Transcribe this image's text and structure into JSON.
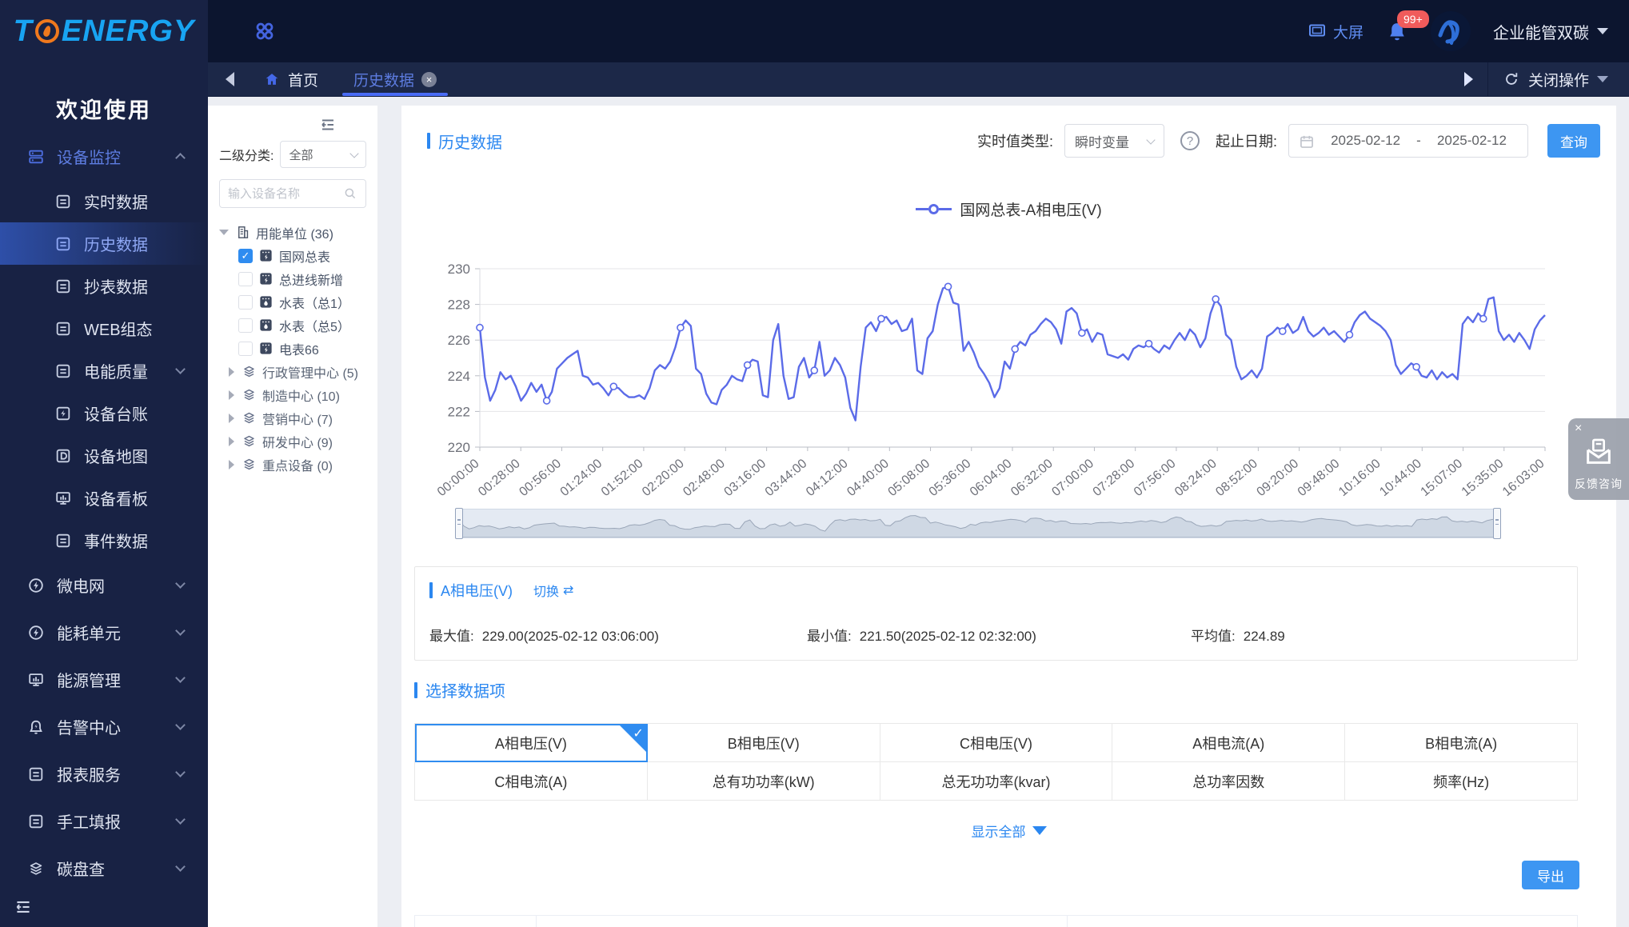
{
  "sidebar": {
    "logo": {
      "prefix": "T",
      "suffix": "ENERGY"
    },
    "welcome": "欢迎使用",
    "menu": [
      {
        "label": "设备监控",
        "icon": "devices-icon",
        "kind": "group",
        "chevron": "up",
        "active": true
      },
      {
        "label": "实时数据",
        "icon": "doc-icon",
        "kind": "item"
      },
      {
        "label": "历史数据",
        "icon": "doc-icon",
        "kind": "item",
        "selected": true
      },
      {
        "label": "抄表数据",
        "icon": "doc-icon",
        "kind": "item"
      },
      {
        "label": "WEB组态",
        "icon": "doc-icon",
        "kind": "item"
      },
      {
        "label": "电能质量",
        "icon": "doc-icon",
        "kind": "item",
        "chevron": "down"
      },
      {
        "label": "设备台账",
        "icon": "ledger-icon",
        "kind": "item"
      },
      {
        "label": "设备地图",
        "icon": "map-icon",
        "kind": "item"
      },
      {
        "label": "设备看板",
        "icon": "board-icon",
        "kind": "item"
      },
      {
        "label": "事件数据",
        "icon": "doc-icon",
        "kind": "item"
      },
      {
        "label": "微电网",
        "icon": "bolt-icon",
        "kind": "top",
        "chevron": "down"
      },
      {
        "label": "能耗单元",
        "icon": "bolt-icon",
        "kind": "top",
        "chevron": "down"
      },
      {
        "label": "能源管理",
        "icon": "board-icon",
        "kind": "top",
        "chevron": "down"
      },
      {
        "label": "告警中心",
        "icon": "alarm-icon",
        "kind": "top",
        "chevron": "down"
      },
      {
        "label": "报表服务",
        "icon": "doc-icon",
        "kind": "top",
        "chevron": "down"
      },
      {
        "label": "手工填报",
        "icon": "doc-icon",
        "kind": "top",
        "chevron": "down"
      },
      {
        "label": "碳盘查",
        "icon": "layers-icon",
        "kind": "top",
        "chevron": "down"
      }
    ]
  },
  "topbar": {
    "big_screen": "大屏",
    "badge": "99+",
    "account": "企业能管双碳"
  },
  "tabbar": {
    "home": "首页",
    "active_tab": "历史数据",
    "close_ops": "关闭操作"
  },
  "tree": {
    "category_label": "二级分类:",
    "category_value": "全部",
    "search_placeholder": "输入设备名称",
    "root": {
      "label": "用能单位 (36)"
    },
    "devices": [
      {
        "label": "国网总表",
        "checked": true,
        "meter": "electric"
      },
      {
        "label": "总进线新增",
        "checked": false,
        "meter": "electric"
      },
      {
        "label": "水表（总1）",
        "checked": false,
        "meter": "water"
      },
      {
        "label": "水表（总5）",
        "checked": false,
        "meter": "water"
      },
      {
        "label": "电表66",
        "checked": false,
        "meter": "electric"
      }
    ],
    "groups": [
      {
        "label": "行政管理中心 (5)"
      },
      {
        "label": "制造中心 (10)"
      },
      {
        "label": "营销中心 (7)"
      },
      {
        "label": "研发中心 (9)"
      },
      {
        "label": "重点设备 (0)"
      }
    ]
  },
  "filters": {
    "page_title": "历史数据",
    "realtime_type_label": "实时值类型:",
    "realtime_type_value": "瞬时变量",
    "date_label": "起止日期:",
    "date_start": "2025-02-12",
    "date_separator": "-",
    "date_end": "2025-02-12",
    "query": "查询"
  },
  "chart_data": {
    "type": "line",
    "legend": "国网总表-A相电压(V)",
    "line_color": "#5b6be8",
    "ylim": [
      220,
      230
    ],
    "ytick_step": 2,
    "grid": "horizontal",
    "x_ticks": [
      "00:00:00",
      "00:28:00",
      "00:56:00",
      "01:24:00",
      "01:52:00",
      "02:20:00",
      "02:48:00",
      "03:16:00",
      "03:44:00",
      "04:12:00",
      "04:40:00",
      "05:08:00",
      "05:36:00",
      "06:04:00",
      "06:32:00",
      "07:00:00",
      "07:28:00",
      "07:56:00",
      "08:24:00",
      "08:52:00",
      "09:20:00",
      "09:48:00",
      "10:16:00",
      "10:44:00",
      "15:07:00",
      "15:35:00",
      "16:03:00"
    ],
    "values": [
      226.7,
      223.9,
      222.6,
      223.2,
      224.2,
      223.8,
      224.0,
      223.4,
      222.6,
      223.0,
      223.6,
      223.1,
      223.5,
      222.6,
      223.1,
      224.4,
      224.7,
      225.0,
      225.2,
      225.4,
      224.0,
      223.9,
      223.5,
      223.6,
      223.3,
      222.9,
      223.4,
      223.3,
      223.0,
      222.8,
      222.8,
      222.9,
      222.7,
      223.3,
      224.3,
      224.6,
      224.4,
      224.8,
      225.6,
      226.7,
      227.1,
      226.8,
      224.4,
      224.1,
      223.0,
      222.5,
      222.4,
      223.2,
      223.5,
      224.0,
      223.8,
      223.7,
      224.6,
      224.9,
      224.8,
      222.9,
      222.8,
      226.0,
      226.9,
      224.0,
      222.7,
      222.8,
      224.5,
      225.0,
      223.9,
      224.3,
      225.9,
      224.0,
      224.3,
      225.0,
      224.6,
      223.9,
      222.2,
      221.5,
      224.5,
      226.7,
      227.0,
      226.5,
      227.2,
      227.3,
      226.9,
      227.1,
      226.5,
      226.6,
      227.2,
      224.3,
      224.1,
      226.1,
      226.5,
      228.0,
      228.9,
      229.0,
      228.1,
      228.0,
      225.4,
      225.9,
      225.3,
      224.5,
      224.1,
      223.6,
      222.8,
      223.3,
      224.8,
      224.4,
      225.5,
      225.9,
      225.7,
      226.3,
      226.5,
      226.9,
      227.2,
      227.0,
      226.6,
      225.8,
      227.6,
      227.8,
      227.5,
      226.4,
      226.6,
      225.9,
      226.4,
      226.3,
      225.2,
      225.1,
      225.0,
      225.2,
      224.9,
      225.5,
      225.7,
      225.6,
      225.8,
      225.5,
      225.3,
      225.7,
      225.5,
      226.0,
      226.4,
      226.0,
      226.6,
      226.3,
      225.6,
      226.1,
      227.5,
      228.3,
      227.9,
      226.3,
      226.0,
      224.5,
      223.8,
      224.0,
      224.3,
      223.9,
      224.4,
      226.2,
      226.4,
      226.7,
      226.5,
      226.9,
      226.4,
      226.6,
      227.3,
      226.5,
      226.2,
      226.4,
      226.7,
      226.3,
      226.5,
      226.2,
      225.9,
      226.3,
      227.0,
      227.4,
      227.6,
      227.2,
      227.0,
      226.8,
      226.5,
      226.0,
      224.6,
      224.1,
      224.4,
      224.7,
      224.5,
      224.0,
      223.9,
      224.3,
      223.8,
      224.2,
      223.9,
      224.1,
      223.8,
      226.9,
      227.3,
      227.0,
      227.5,
      227.2,
      228.3,
      228.4,
      226.5,
      226.0,
      226.3,
      225.9,
      226.4,
      226.0,
      225.5,
      226.6,
      227.1,
      227.4
    ]
  },
  "summary": {
    "title": "A相电压(V)",
    "switch_label": "切换",
    "max_label": "最大值:",
    "max_value": "229.00(2025-02-12 03:06:00)",
    "min_label": "最小值:",
    "min_value": "221.50(2025-02-12 02:32:00)",
    "avg_label": "平均值:",
    "avg_value": "224.89"
  },
  "data_items": {
    "section_title": "选择数据项",
    "selected_index": 0,
    "items": [
      "A相电压(V)",
      "B相电压(V)",
      "C相电压(V)",
      "A相电流(A)",
      "B相电流(A)",
      "C相电流(A)",
      "总有功功率(kW)",
      "总无功功率(kvar)",
      "总功率因数",
      "频率(Hz)"
    ],
    "show_all": "显示全部",
    "export": "导出"
  },
  "feedback": {
    "label": "反馈咨询"
  }
}
